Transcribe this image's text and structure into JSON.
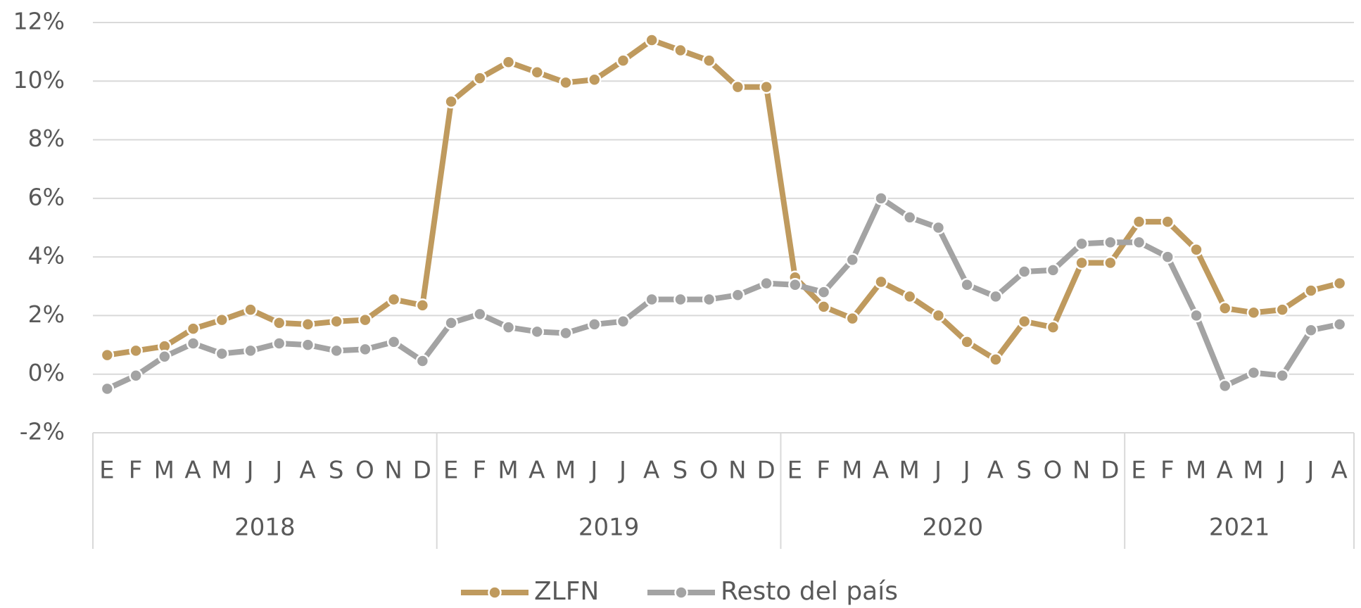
{
  "chart_data": {
    "type": "line",
    "year_groups": [
      {
        "label": "2018",
        "months": [
          "E",
          "F",
          "M",
          "A",
          "M",
          "J",
          "J",
          "A",
          "S",
          "O",
          "N",
          "D"
        ]
      },
      {
        "label": "2019",
        "months": [
          "E",
          "F",
          "M",
          "A",
          "M",
          "J",
          "J",
          "A",
          "S",
          "O",
          "N",
          "D"
        ]
      },
      {
        "label": "2020",
        "months": [
          "E",
          "F",
          "M",
          "A",
          "M",
          "J",
          "J",
          "A",
          "S",
          "O",
          "N",
          "D"
        ]
      },
      {
        "label": "2021",
        "months": [
          "E",
          "F",
          "M",
          "A",
          "M",
          "J",
          "J",
          "A"
        ]
      }
    ],
    "series": [
      {
        "name": "ZLFN",
        "color": "#bf9a5e",
        "values": [
          0.65,
          0.8,
          0.95,
          1.55,
          1.85,
          2.2,
          1.75,
          1.7,
          1.8,
          1.85,
          2.55,
          2.35,
          9.3,
          10.1,
          10.65,
          10.3,
          9.95,
          10.05,
          10.7,
          11.4,
          11.05,
          10.7,
          9.8,
          9.8,
          3.3,
          2.3,
          1.9,
          3.15,
          2.65,
          2.0,
          1.1,
          0.5,
          1.8,
          1.6,
          3.8,
          3.8,
          5.2,
          5.2,
          4.25,
          2.25,
          2.1,
          2.2,
          2.85,
          3.1
        ]
      },
      {
        "name": "Resto del país",
        "color": "#a3a3a3",
        "values": [
          -0.5,
          -0.05,
          0.6,
          1.05,
          0.7,
          0.8,
          1.05,
          1.0,
          0.8,
          0.85,
          1.1,
          0.45,
          1.75,
          2.05,
          1.6,
          1.45,
          1.4,
          1.7,
          1.8,
          2.55,
          2.55,
          2.55,
          2.7,
          3.1,
          3.05,
          2.8,
          3.9,
          6.0,
          5.35,
          5.0,
          3.05,
          2.65,
          3.5,
          3.55,
          4.45,
          4.5,
          4.5,
          4.0,
          2.0,
          -0.4,
          0.05,
          -0.05,
          1.5,
          1.7
        ]
      }
    ],
    "ylim": [
      -2,
      12
    ],
    "yticks": [
      {
        "value": -2,
        "label": "-2%"
      },
      {
        "value": 0,
        "label": "0%"
      },
      {
        "value": 2,
        "label": "2%"
      },
      {
        "value": 4,
        "label": "4%"
      },
      {
        "value": 6,
        "label": "6%"
      },
      {
        "value": 8,
        "label": "8%"
      },
      {
        "value": 10,
        "label": "10%"
      },
      {
        "value": 12,
        "label": "12%"
      }
    ],
    "grid": true,
    "legend": "bottom"
  }
}
